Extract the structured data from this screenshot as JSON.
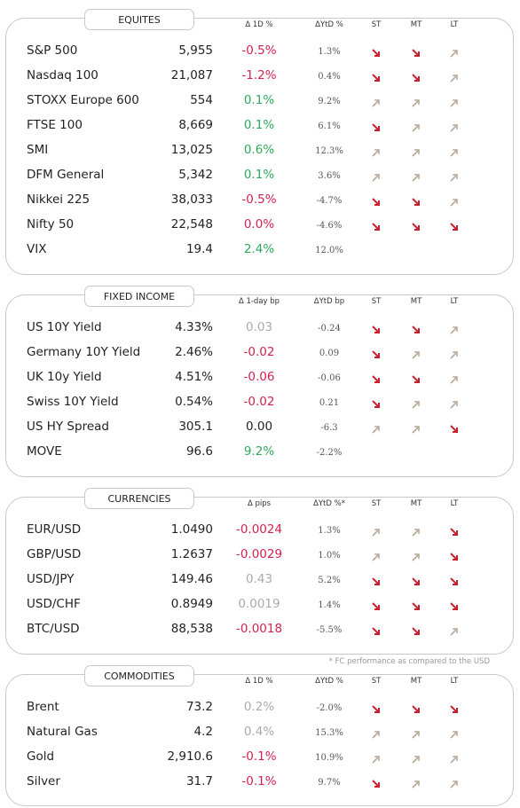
{
  "sections": [
    {
      "title": "EQUITES",
      "headers": [
        "Δ 1D %",
        "ΔYtD %",
        "ST",
        "MT",
        "LT"
      ],
      "rows": [
        [
          "S&P 500",
          "5,955",
          "-0.5%",
          "1.3%"
        ],
        [
          "Nasdaq 100",
          "21,087",
          "-1.2%",
          "0.4%"
        ],
        [
          "STOXX Europe 600",
          "554",
          "0.1%",
          "9.2%"
        ],
        [
          "FTSE 100",
          "8,669",
          "0.1%",
          "6.1%"
        ],
        [
          "SMI",
          "13,025",
          "0.6%",
          "12.3%"
        ],
        [
          "DFM General",
          "5,342",
          "0.1%",
          "3.6%"
        ],
        [
          "Nikkei 225",
          "38,033",
          "-0.5%",
          "-4.7%"
        ],
        [
          "Nifty  50",
          "22,548",
          "0.0%",
          "-4.6%"
        ],
        [
          "VIX",
          "19.4",
          "2.4%",
          "12.0%"
        ]
      ]
    },
    {
      "title": "FIXED INCOME",
      "headers": [
        "Δ 1-day bp",
        "ΔYtD bp",
        "ST",
        "MT",
        "LT"
      ],
      "rows": [
        [
          "US 10Y Yield",
          "4.33%",
          "0.03",
          "-0.24"
        ],
        [
          "Germany 10Y Yield",
          "2.46%",
          "-0.02",
          "0.09"
        ],
        [
          "UK 10y Yield",
          "4.51%",
          "-0.06",
          "-0.06"
        ],
        [
          "Swiss 10Y Yield",
          "0.54%",
          "-0.02",
          "0.21"
        ],
        [
          "US HY Spread",
          "305.1",
          "0.00",
          "-6.3"
        ],
        [
          "MOVE",
          "96.6",
          "9.2%",
          "-2.2%"
        ]
      ]
    },
    {
      "title": "CURRENCIES",
      "headers": [
        "Δ pips",
        "ΔYtD %*",
        "ST",
        "MT",
        "LT"
      ],
      "rows": [
        [
          "EUR/USD",
          "1.0490",
          "-0.0024",
          "1.3%"
        ],
        [
          "GBP/USD",
          "1.2637",
          "-0.0029",
          "1.0%"
        ],
        [
          "USD/JPY",
          "149.46",
          "0.43",
          "5.2%"
        ],
        [
          "USD/CHF",
          "0.8949",
          "0.0019",
          "1.4%"
        ],
        [
          "BTC/USD",
          "88,538",
          "-0.0018",
          "-5.5%"
        ]
      ]
    },
    {
      "title": "COMMODITIES",
      "headers": [
        "Δ 1D %",
        "ΔYtD %",
        "ST",
        "MT",
        "LT"
      ],
      "rows": [
        [
          "Brent",
          "73.2",
          "0.2%",
          "-2.0%"
        ],
        [
          "Natural Gas",
          "4.2",
          "0.4%",
          "15.3%"
        ],
        [
          "Gold",
          "2,910.6",
          "-0.1%",
          "10.9%"
        ],
        [
          "Silver",
          "31.7",
          "-0.1%",
          "9.7%"
        ]
      ]
    }
  ],
  "footnote": "* FC performance as compared to the USD"
}
